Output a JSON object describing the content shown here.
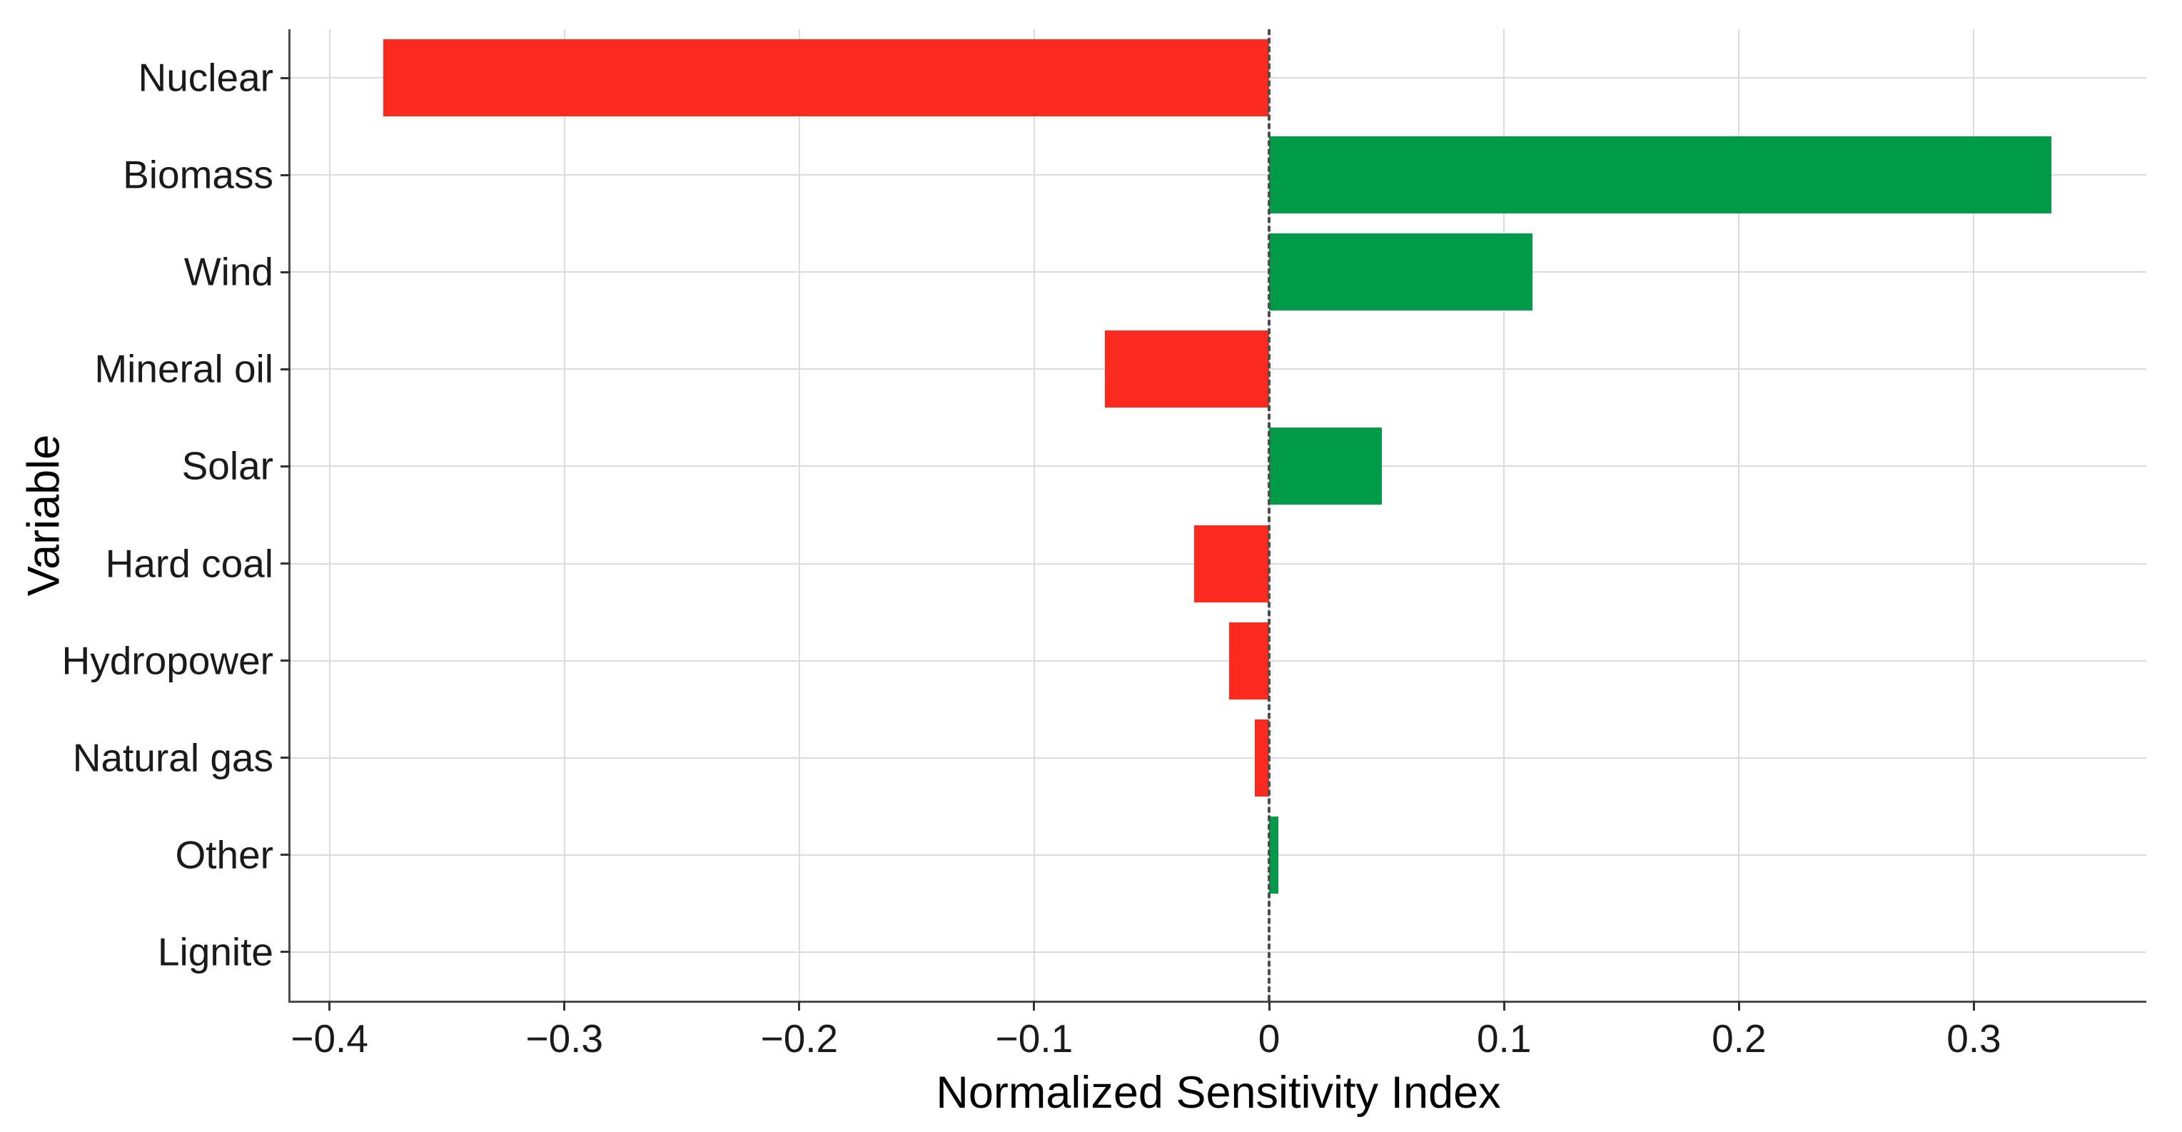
{
  "chart_data": {
    "type": "bar",
    "orientation": "horizontal",
    "xlabel": "Normalized Sensitivity Index",
    "ylabel": "Variable",
    "categories": [
      "Nuclear",
      "Biomass",
      "Wind",
      "Mineral oil",
      "Solar",
      "Hard coal",
      "Hydropower",
      "Natural gas",
      "Other",
      "Lignite"
    ],
    "values": [
      -0.377,
      0.333,
      0.112,
      -0.07,
      0.048,
      -0.032,
      -0.017,
      -0.006,
      0.004,
      0.0
    ],
    "xlim": [
      -0.4166,
      0.3734
    ],
    "x_ticks": [
      {
        "value": -0.4,
        "label": "−0.4"
      },
      {
        "value": -0.3,
        "label": "−0.3"
      },
      {
        "value": -0.2,
        "label": "−0.2"
      },
      {
        "value": -0.1,
        "label": "−0.1"
      },
      {
        "value": 0,
        "label": "0"
      },
      {
        "value": 0.1,
        "label": "0.1"
      },
      {
        "value": 0.2,
        "label": "0.2"
      },
      {
        "value": 0.3,
        "label": "0.3"
      }
    ],
    "grid": true,
    "legend": "none",
    "bar_width_fraction": 0.79,
    "colors": {
      "positive": "#009B48",
      "negative": "#FA2A1F",
      "gridline": "#dbdbdb",
      "axis": "#4d4d4d",
      "tick": "#333333",
      "zero_line": "#4d4d4d",
      "text": "#1a1a1a"
    },
    "zero_line_style": "dashed"
  }
}
